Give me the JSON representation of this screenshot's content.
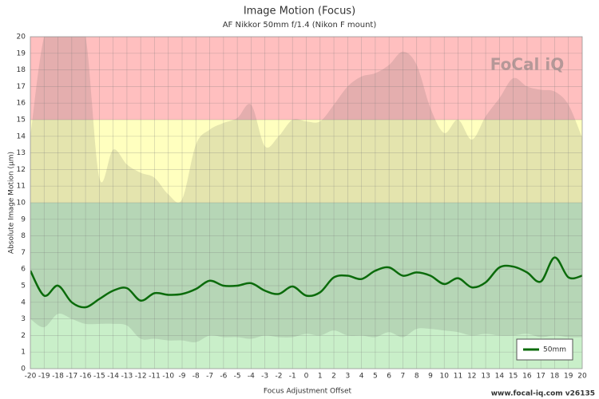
{
  "chart_data": {
    "type": "line",
    "title": "Image Motion (Focus)",
    "subtitle": "AF Nikkor 50mm f/1.4 (Nikon F mount)",
    "x_label": "Focus Adjustment Offset",
    "y_label": "Absolute Image Motion (µm)",
    "footer": "www.focal-iq.com  v26135",
    "logo": "FoCal iQ",
    "x": [
      -20,
      -19,
      -18,
      -17,
      -16,
      -15,
      -14,
      -13,
      -12,
      -11,
      -10,
      -9,
      -8,
      -7,
      -6,
      -5,
      -4,
      -3,
      -2,
      -1,
      0,
      1,
      2,
      3,
      4,
      5,
      6,
      7,
      8,
      9,
      10,
      11,
      12,
      13,
      14,
      15,
      16,
      17,
      18,
      19,
      20
    ],
    "series": [
      {
        "name": "50mm",
        "color": "#0b6b0b",
        "values": [
          5.9,
          4.4,
          5.0,
          4.0,
          3.7,
          4.2,
          4.7,
          4.85,
          4.1,
          4.55,
          4.45,
          4.5,
          4.8,
          5.3,
          5.0,
          5.0,
          5.15,
          4.7,
          4.5,
          4.95,
          4.4,
          4.6,
          5.5,
          5.6,
          5.4,
          5.9,
          6.1,
          5.6,
          5.8,
          5.6,
          5.1,
          5.45,
          4.9,
          5.2,
          6.1,
          6.15,
          5.8,
          5.25,
          6.7,
          5.5,
          5.6
        ]
      }
    ],
    "envelope": {
      "color": "rgba(90,90,90,0.16)",
      "upper": [
        14,
        20,
        20,
        20,
        20,
        11.5,
        13.2,
        12.3,
        11.8,
        11.5,
        10.5,
        10.2,
        13.5,
        14.4,
        14.8,
        15.1,
        15.9,
        13.4,
        14,
        15,
        14.9,
        14.9,
        15.9,
        17,
        17.6,
        17.8,
        18.3,
        19.1,
        18.3,
        15.7,
        14.2,
        15,
        13.8,
        15.2,
        16.3,
        17.5,
        17,
        16.8,
        16.7,
        15.9,
        13.9
      ],
      "lower": [
        3.0,
        2.5,
        3.3,
        3.0,
        2.7,
        2.7,
        2.7,
        2.6,
        1.8,
        1.8,
        1.7,
        1.7,
        1.6,
        2.0,
        1.9,
        1.9,
        1.8,
        2.0,
        1.9,
        1.9,
        2.1,
        2.0,
        2.3,
        2.0,
        2.0,
        1.9,
        2.2,
        1.9,
        2.4,
        2.4,
        2.3,
        2.2,
        2.0,
        2.1,
        2.0,
        2.0,
        2.1,
        1.9,
        2.0,
        1.9,
        1.9
      ]
    },
    "zones": [
      {
        "from": 0,
        "to": 10,
        "color": "#c9efc9"
      },
      {
        "from": 10,
        "to": 15,
        "color": "#ffffbf"
      },
      {
        "from": 15,
        "to": 20,
        "color": "#ffbfbf"
      }
    ],
    "xlim": [
      -20,
      20
    ],
    "ylim": [
      0,
      20
    ],
    "xticks": [
      -20,
      -19,
      -18,
      -17,
      -16,
      -15,
      -14,
      -13,
      -12,
      -11,
      -10,
      -9,
      -8,
      -7,
      -6,
      -5,
      -4,
      -3,
      -2,
      -1,
      0,
      1,
      2,
      3,
      4,
      5,
      6,
      7,
      8,
      9,
      10,
      11,
      12,
      13,
      14,
      15,
      16,
      17,
      18,
      19,
      20
    ],
    "yticks": [
      0,
      1,
      2,
      3,
      4,
      5,
      6,
      7,
      8,
      9,
      10,
      11,
      12,
      13,
      14,
      15,
      16,
      17,
      18,
      19,
      20
    ],
    "grid": true,
    "legend": "lower right"
  }
}
